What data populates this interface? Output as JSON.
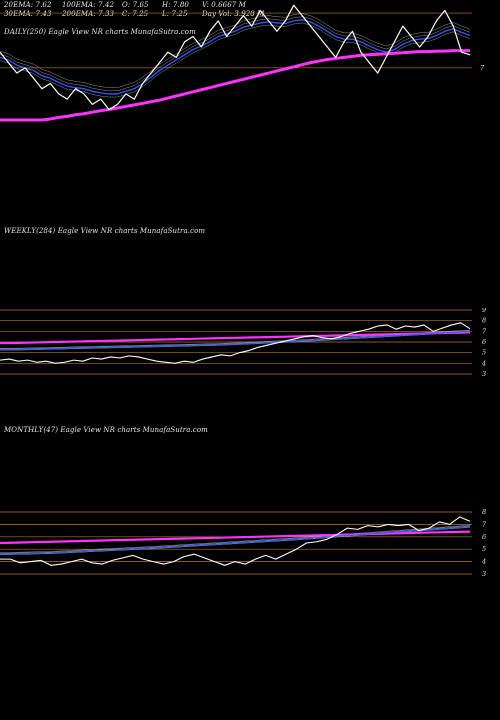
{
  "header": {
    "ema20": "20EMA: 7.62",
    "ema100": "100EMA: 7.42",
    "open": "O: 7.65",
    "high": "H: 7.80",
    "volume": "V: 0.6667 M",
    "ema30": "30EMA: 7.43",
    "ema200": "200EMA: 7.33",
    "close": "C: 7.25",
    "low": "L: 7.25",
    "day_vol": "Day Vol: 3.928 M"
  },
  "panels": {
    "daily": {
      "label": "DAILY(250) Eagle  View  NR charts MunafaSutra.com"
    },
    "weekly": {
      "label": "WEEKLY(284) Eagle  View  NR charts MunafaSutra.com"
    },
    "monthly": {
      "label": "MONTHLY(47) Eagle  View  NR charts MunafaSutra.com"
    }
  },
  "colors": {
    "price": "#ffffff",
    "ema_fast": "#2f5bff",
    "ema_slow": "#ff33ff",
    "level": "#b8742a",
    "ema_grey": "#d9d9d9"
  },
  "chart_data": [
    {
      "type": "line",
      "title": "DAILY(250) Eagle  View  NR charts MunafaSutra.com",
      "yticks": [
        "7"
      ],
      "series": [
        {
          "values": [
            7.3,
            7.1,
            6.9,
            7.0,
            6.8,
            6.6,
            6.7,
            6.5,
            6.4,
            6.6,
            6.5,
            6.3,
            6.4,
            6.2,
            6.3,
            6.5,
            6.4,
            6.7,
            6.9,
            7.1,
            7.3,
            7.2,
            7.5,
            7.6,
            7.4,
            7.7,
            7.9,
            7.6,
            7.8,
            8.0,
            7.8,
            8.1,
            7.9,
            7.7,
            7.9,
            8.2,
            8.0,
            7.8,
            7.6,
            7.4,
            7.2,
            7.5,
            7.7,
            7.3,
            7.1,
            6.9,
            7.2,
            7.5,
            7.8,
            7.6,
            7.4,
            7.6,
            7.9,
            8.1,
            7.8,
            7.3,
            7.25
          ]
        },
        {
          "values": [
            7.2,
            7.15,
            7.05,
            7.0,
            6.95,
            6.85,
            6.8,
            6.72,
            6.65,
            6.62,
            6.6,
            6.55,
            6.52,
            6.5,
            6.5,
            6.55,
            6.6,
            6.7,
            6.82,
            6.95,
            7.05,
            7.15,
            7.25,
            7.35,
            7.42,
            7.5,
            7.6,
            7.65,
            7.7,
            7.78,
            7.82,
            7.86,
            7.88,
            7.86,
            7.85,
            7.9,
            7.92,
            7.88,
            7.8,
            7.7,
            7.6,
            7.55,
            7.55,
            7.5,
            7.42,
            7.35,
            7.3,
            7.35,
            7.45,
            7.52,
            7.55,
            7.56,
            7.62,
            7.7,
            7.75,
            7.68,
            7.62
          ]
        },
        {
          "values": [
            6.0,
            6.0,
            6.0,
            6.0,
            6.0,
            6.0,
            6.02,
            6.05,
            6.07,
            6.1,
            6.12,
            6.15,
            6.18,
            6.2,
            6.23,
            6.26,
            6.29,
            6.32,
            6.35,
            6.38,
            6.42,
            6.46,
            6.5,
            6.54,
            6.58,
            6.62,
            6.66,
            6.7,
            6.74,
            6.78,
            6.82,
            6.86,
            6.9,
            6.94,
            6.98,
            7.02,
            7.06,
            7.1,
            7.13,
            7.16,
            7.18,
            7.2,
            7.22,
            7.24,
            7.25,
            7.26,
            7.27,
            7.28,
            7.29,
            7.3,
            7.31,
            7.31,
            7.32,
            7.32,
            7.33,
            7.33,
            7.33
          ]
        }
      ]
    },
    {
      "type": "line",
      "title": "WEEKLY(284) Eagle  View  NR charts MunafaSutra.com",
      "yticks": [
        "9",
        "8",
        "7",
        "6",
        "5",
        "4",
        "3"
      ],
      "series": [
        {
          "values": [
            4.3,
            4.4,
            4.2,
            4.3,
            4.1,
            4.2,
            4.0,
            4.1,
            4.3,
            4.2,
            4.5,
            4.4,
            4.6,
            4.5,
            4.7,
            4.6,
            4.4,
            4.2,
            4.1,
            4.0,
            4.2,
            4.1,
            4.4,
            4.6,
            4.8,
            4.7,
            5.0,
            5.2,
            5.5,
            5.7,
            5.9,
            6.1,
            6.3,
            6.5,
            6.6,
            6.4,
            6.3,
            6.5,
            6.8,
            7.0,
            7.2,
            7.5,
            7.6,
            7.2,
            7.5,
            7.4,
            7.6,
            7.0,
            7.3,
            7.6,
            7.8,
            7.25
          ]
        },
        {
          "values": [
            5.3,
            5.3,
            5.3,
            5.32,
            5.34,
            5.36,
            5.38,
            5.4,
            5.42,
            5.44,
            5.46,
            5.48,
            5.5,
            5.52,
            5.54,
            5.56,
            5.58,
            5.6,
            5.62,
            5.64,
            5.66,
            5.68,
            5.7,
            5.72,
            5.75,
            5.78,
            5.82,
            5.86,
            5.9,
            5.94,
            5.98,
            6.02,
            6.06,
            6.1,
            6.15,
            6.2,
            6.25,
            6.3,
            6.35,
            6.4,
            6.45,
            6.5,
            6.55,
            6.6,
            6.65,
            6.7,
            6.75,
            6.8,
            6.85,
            6.9,
            6.95,
            7.0
          ]
        },
        {
          "values": [
            5.9,
            5.9,
            5.92,
            5.94,
            5.96,
            5.98,
            6.0,
            6.02,
            6.04,
            6.06,
            6.08,
            6.1,
            6.12,
            6.14,
            6.16,
            6.18,
            6.2,
            6.22,
            6.24,
            6.26,
            6.28,
            6.3,
            6.32,
            6.34,
            6.36,
            6.38,
            6.4,
            6.42,
            6.44,
            6.46,
            6.48,
            6.5,
            6.52,
            6.54,
            6.56,
            6.58,
            6.6,
            6.62,
            6.64,
            6.66,
            6.68,
            6.7,
            6.72,
            6.74,
            6.76,
            6.78,
            6.8,
            6.82,
            6.84,
            6.86,
            6.88,
            6.9
          ]
        }
      ]
    },
    {
      "type": "line",
      "title": "MONTHLY(47) Eagle  View  NR charts MunafaSutra.com",
      "yticks": [
        "8",
        "7",
        "6",
        "5",
        "4",
        "3"
      ],
      "series": [
        {
          "values": [
            4.2,
            4.2,
            3.9,
            4.0,
            4.1,
            3.7,
            3.8,
            4.0,
            4.2,
            3.9,
            3.8,
            4.1,
            4.3,
            4.5,
            4.2,
            4.0,
            3.8,
            4.0,
            4.4,
            4.6,
            4.3,
            4.0,
            3.7,
            4.0,
            3.8,
            4.2,
            4.5,
            4.2,
            4.6,
            5.0,
            5.5,
            5.6,
            5.8,
            6.2,
            6.7,
            6.6,
            6.9,
            6.8,
            7.0,
            6.9,
            7.0,
            6.5,
            6.7,
            7.2,
            7.0,
            7.6,
            7.25
          ]
        },
        {
          "values": [
            4.6,
            4.62,
            4.64,
            4.66,
            4.68,
            4.7,
            4.74,
            4.78,
            4.82,
            4.86,
            4.9,
            4.94,
            4.98,
            5.02,
            5.06,
            5.1,
            5.15,
            5.2,
            5.25,
            5.3,
            5.35,
            5.4,
            5.45,
            5.5,
            5.55,
            5.6,
            5.65,
            5.7,
            5.75,
            5.8,
            5.86,
            5.92,
            5.98,
            6.04,
            6.1,
            6.16,
            6.22,
            6.28,
            6.34,
            6.4,
            6.46,
            6.52,
            6.58,
            6.64,
            6.7,
            6.76,
            6.82
          ]
        },
        {
          "values": [
            5.5,
            5.52,
            5.54,
            5.56,
            5.58,
            5.6,
            5.62,
            5.64,
            5.66,
            5.68,
            5.7,
            5.72,
            5.74,
            5.76,
            5.78,
            5.8,
            5.82,
            5.84,
            5.86,
            5.88,
            5.9,
            5.92,
            5.94,
            5.96,
            5.98,
            6.0,
            6.02,
            6.04,
            6.06,
            6.08,
            6.1,
            6.12,
            6.14,
            6.16,
            6.18,
            6.2,
            6.22,
            6.24,
            6.26,
            6.28,
            6.3,
            6.32,
            6.34,
            6.36,
            6.38,
            6.4,
            6.42
          ]
        }
      ]
    }
  ]
}
